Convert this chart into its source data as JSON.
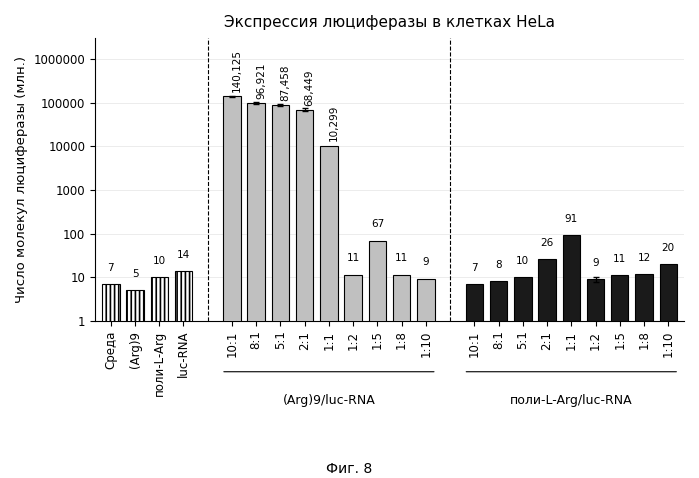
{
  "title": "Экспрессия люциферазы в клетках HeLa",
  "ylabel": "Число молекул люциферазы (млн.)",
  "fig_label": "Фиг. 8",
  "controls": [
    {
      "label": "Среда",
      "value": 7,
      "annotation": "7"
    },
    {
      "label": "(Arg)9",
      "value": 5,
      "annotation": "5"
    },
    {
      "label": "поли-L-Arg",
      "value": 10,
      "annotation": "10"
    },
    {
      "label": "luc-RNA",
      "value": 14,
      "annotation": "14"
    }
  ],
  "group1_label": "(Arg)9/luc-RNA",
  "group1_bars": [
    {
      "label": "10:1",
      "value": 140125,
      "annotation": "140,125",
      "error": 5000,
      "rot": 90
    },
    {
      "label": "8:1",
      "value": 96921,
      "annotation": "96,921",
      "error": 4000,
      "rot": 90
    },
    {
      "label": "5:1",
      "value": 87458,
      "annotation": "87,458",
      "error": 3500,
      "rot": 90
    },
    {
      "label": "2:1",
      "value": 68449,
      "annotation": "68,449",
      "error": 5500,
      "rot": 90
    },
    {
      "label": "1:1",
      "value": 10299,
      "annotation": "10,299",
      "error": null,
      "rot": 90
    },
    {
      "label": "1:2",
      "value": 11,
      "annotation": "11",
      "error": null,
      "rot": 0
    },
    {
      "label": "1:5",
      "value": 67,
      "annotation": "67",
      "error": null,
      "rot": 0
    },
    {
      "label": "1:8",
      "value": 11,
      "annotation": "11",
      "error": null,
      "rot": 0
    },
    {
      "label": "1:10",
      "value": 9,
      "annotation": "9",
      "error": null,
      "rot": 0
    }
  ],
  "group2_label": "поли-L-Arg/luc-RNA",
  "group2_bars": [
    {
      "label": "10:1",
      "value": 7,
      "annotation": "7",
      "error": null
    },
    {
      "label": "8:1",
      "value": 8,
      "annotation": "8",
      "error": null
    },
    {
      "label": "5:1",
      "value": 10,
      "annotation": "10",
      "error": null
    },
    {
      "label": "2:1",
      "value": 26,
      "annotation": "26",
      "error": null
    },
    {
      "label": "1:1",
      "value": 91,
      "annotation": "91",
      "error": null
    },
    {
      "label": "1:2",
      "value": 9,
      "annotation": "9",
      "error": 1.2
    },
    {
      "label": "1:5",
      "value": 11,
      "annotation": "11",
      "error": null
    },
    {
      "label": "1:8",
      "value": 12,
      "annotation": "12",
      "error": null
    },
    {
      "label": "1:10",
      "value": 20,
      "annotation": "20",
      "error": null
    }
  ],
  "yticks": [
    1,
    10,
    100,
    1000,
    10000,
    100000,
    1000000
  ],
  "ytick_labels": [
    "1",
    "10",
    "100",
    "1000",
    "10000",
    "100000",
    "1000000"
  ],
  "ylim": [
    1,
    3000000
  ],
  "bar_width": 0.72,
  "control_color": "#ffffff",
  "control_hatch": "||||",
  "group1_color": "#c0c0c0",
  "group2_color": "#1a1a1a",
  "annotation_fontsize": 7.5,
  "title_fontsize": 11,
  "ylabel_fontsize": 9.5,
  "tick_fontsize": 8.5,
  "group_label_fontsize": 9
}
